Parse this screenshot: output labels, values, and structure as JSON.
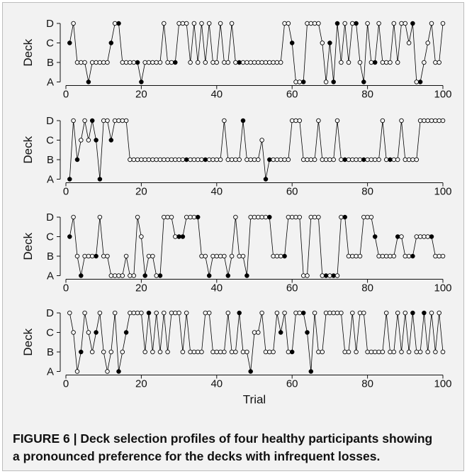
{
  "caption": {
    "lines": [
      "FIGURE 6 | Deck selection profiles of four healthy participants showing",
      "a pronounced preference for the decks with infrequent losses."
    ]
  },
  "style": {
    "background": "#f2f2f2",
    "border": "#bdbdbd",
    "ink": "#000000",
    "marker_open": "#ffffff",
    "marker_filled": "#000000"
  },
  "chart_data": [
    {
      "type": "line",
      "ylabel": "Deck",
      "xlim": [
        0,
        100
      ],
      "x_ticks": [
        0,
        20,
        40,
        60,
        80,
        100
      ],
      "y_categories": [
        "A",
        "B",
        "C",
        "D"
      ],
      "grid": false,
      "series": [
        {
          "x": [
            1,
            2,
            3,
            4,
            5,
            6,
            7,
            8,
            9,
            10,
            11,
            12,
            13,
            14,
            15,
            16,
            17,
            18,
            19,
            20,
            21,
            22,
            23,
            24,
            25,
            26,
            27,
            28,
            29,
            30,
            31,
            32,
            33,
            34,
            35,
            36,
            37,
            38,
            39,
            40,
            41,
            42,
            43,
            44,
            45,
            46,
            47,
            48,
            49,
            50,
            51,
            52,
            53,
            54,
            55,
            56,
            57,
            58,
            59,
            60,
            61,
            62,
            63,
            64,
            65,
            66,
            67,
            68,
            69,
            70,
            71,
            72,
            73,
            74,
            75,
            76,
            77,
            78,
            79,
            80,
            81,
            82,
            83,
            84,
            85,
            86,
            87,
            88,
            89,
            90,
            91,
            92,
            93,
            94,
            95,
            96,
            97,
            98,
            99,
            100
          ],
          "y": [
            "C",
            "D",
            "B",
            "B",
            "B",
            "A",
            "B",
            "B",
            "B",
            "B",
            "B",
            "C",
            "D",
            "D",
            "B",
            "B",
            "B",
            "B",
            "B",
            "A",
            "B",
            "B",
            "B",
            "B",
            "B",
            "D",
            "B",
            "B",
            "B",
            "D",
            "D",
            "D",
            "B",
            "D",
            "B",
            "D",
            "B",
            "D",
            "B",
            "B",
            "D",
            "B",
            "B",
            "D",
            "B",
            "B",
            "B",
            "B",
            "B",
            "B",
            "B",
            "B",
            "B",
            "B",
            "B",
            "B",
            "B",
            "D",
            "D",
            "C",
            "A",
            "A",
            "A",
            "D",
            "D",
            "D",
            "D",
            "C",
            "A",
            "C",
            "A",
            "D",
            "B",
            "D",
            "B",
            "D",
            "D",
            "B",
            "A",
            "D",
            "B",
            "B",
            "D",
            "B",
            "B",
            "B",
            "D",
            "B",
            "D",
            "D",
            "C",
            "D",
            "A",
            "A",
            "B",
            "C",
            "D",
            "B",
            "B",
            "D"
          ],
          "filled": [
            1,
            6,
            12,
            14,
            19,
            20,
            29,
            46,
            60,
            63,
            70,
            71,
            72,
            77,
            79,
            82,
            92,
            94
          ]
        }
      ]
    },
    {
      "type": "line",
      "ylabel": "Deck",
      "xlim": [
        0,
        100
      ],
      "x_ticks": [
        0,
        20,
        40,
        60,
        80,
        100
      ],
      "y_categories": [
        "A",
        "B",
        "C",
        "D"
      ],
      "grid": false,
      "series": [
        {
          "x": [
            1,
            2,
            3,
            4,
            5,
            6,
            7,
            8,
            9,
            10,
            11,
            12,
            13,
            14,
            15,
            16,
            17,
            18,
            19,
            20,
            21,
            22,
            23,
            24,
            25,
            26,
            27,
            28,
            29,
            30,
            31,
            32,
            33,
            34,
            35,
            36,
            37,
            38,
            39,
            40,
            41,
            42,
            43,
            44,
            45,
            46,
            47,
            48,
            49,
            50,
            51,
            52,
            53,
            54,
            55,
            56,
            57,
            58,
            59,
            60,
            61,
            62,
            63,
            64,
            65,
            66,
            67,
            68,
            69,
            70,
            71,
            72,
            73,
            74,
            75,
            76,
            77,
            78,
            79,
            80,
            81,
            82,
            83,
            84,
            85,
            86,
            87,
            88,
            89,
            90,
            91,
            92,
            93,
            94,
            95,
            96,
            97,
            98,
            99,
            100
          ],
          "y": [
            "A",
            "D",
            "B",
            "C",
            "D",
            "C",
            "D",
            "C",
            "A",
            "D",
            "D",
            "C",
            "D",
            "D",
            "D",
            "D",
            "B",
            "B",
            "B",
            "B",
            "B",
            "B",
            "B",
            "B",
            "B",
            "B",
            "B",
            "B",
            "B",
            "B",
            "B",
            "B",
            "B",
            "B",
            "B",
            "B",
            "B",
            "B",
            "B",
            "B",
            "B",
            "D",
            "B",
            "B",
            "B",
            "B",
            "D",
            "B",
            "B",
            "B",
            "B",
            "C",
            "A",
            "B",
            "B",
            "B",
            "B",
            "B",
            "B",
            "D",
            "D",
            "D",
            "B",
            "B",
            "B",
            "B",
            "D",
            "B",
            "B",
            "B",
            "B",
            "D",
            "B",
            "B",
            "B",
            "B",
            "B",
            "B",
            "B",
            "B",
            "B",
            "B",
            "B",
            "D",
            "B",
            "B",
            "B",
            "B",
            "D",
            "B",
            "B",
            "B",
            "B",
            "D",
            "D",
            "D",
            "D",
            "D",
            "D",
            "D"
          ],
          "filled": [
            1,
            3,
            7,
            8,
            9,
            12,
            32,
            37,
            47,
            53,
            54,
            74,
            79,
            86
          ]
        }
      ]
    },
    {
      "type": "line",
      "ylabel": "Deck",
      "xlim": [
        0,
        100
      ],
      "x_ticks": [
        0,
        20,
        40,
        60,
        80,
        100
      ],
      "y_categories": [
        "A",
        "B",
        "C",
        "D"
      ],
      "grid": false,
      "series": [
        {
          "x": [
            1,
            2,
            3,
            4,
            5,
            6,
            7,
            8,
            9,
            10,
            11,
            12,
            13,
            14,
            15,
            16,
            17,
            18,
            19,
            20,
            21,
            22,
            23,
            24,
            25,
            26,
            27,
            28,
            29,
            30,
            31,
            32,
            33,
            34,
            35,
            36,
            37,
            38,
            39,
            40,
            41,
            42,
            43,
            44,
            45,
            46,
            47,
            48,
            49,
            50,
            51,
            52,
            53,
            54,
            55,
            56,
            57,
            58,
            59,
            60,
            61,
            62,
            63,
            64,
            65,
            66,
            67,
            68,
            69,
            70,
            71,
            72,
            73,
            74,
            75,
            76,
            77,
            78,
            79,
            80,
            81,
            82,
            83,
            84,
            85,
            86,
            87,
            88,
            89,
            90,
            91,
            92,
            93,
            94,
            95,
            96,
            97,
            98,
            99,
            100
          ],
          "y": [
            "C",
            "D",
            "B",
            "A",
            "B",
            "B",
            "B",
            "B",
            "D",
            "B",
            "B",
            "A",
            "A",
            "A",
            "A",
            "B",
            "A",
            "A",
            "D",
            "C",
            "A",
            "B",
            "B",
            "A",
            "A",
            "D",
            "D",
            "D",
            "C",
            "C",
            "C",
            "D",
            "D",
            "D",
            "D",
            "B",
            "B",
            "A",
            "B",
            "B",
            "B",
            "B",
            "A",
            "B",
            "D",
            "B",
            "B",
            "A",
            "D",
            "D",
            "D",
            "D",
            "D",
            "D",
            "B",
            "B",
            "B",
            "B",
            "D",
            "D",
            "D",
            "D",
            "A",
            "A",
            "D",
            "D",
            "D",
            "A",
            "A",
            "A",
            "A",
            "A",
            "D",
            "D",
            "B",
            "B",
            "B",
            "B",
            "D",
            "D",
            "D",
            "C",
            "B",
            "B",
            "B",
            "B",
            "B",
            "C",
            "C",
            "B",
            "B",
            "B",
            "C",
            "C",
            "C",
            "C",
            "C",
            "B",
            "B",
            "B"
          ],
          "filled": [
            1,
            4,
            8,
            21,
            25,
            30,
            31,
            35,
            38,
            43,
            48,
            54,
            58,
            69,
            71,
            74,
            82,
            88,
            92,
            97
          ]
        }
      ]
    },
    {
      "type": "line",
      "ylabel": "Deck",
      "xlabel": "Trial",
      "xlim": [
        0,
        100
      ],
      "x_ticks": [
        0,
        20,
        40,
        60,
        80,
        100
      ],
      "y_categories": [
        "A",
        "B",
        "C",
        "D"
      ],
      "grid": false,
      "series": [
        {
          "x": [
            1,
            2,
            3,
            4,
            5,
            6,
            7,
            8,
            9,
            10,
            11,
            12,
            13,
            14,
            15,
            16,
            17,
            18,
            19,
            20,
            21,
            22,
            23,
            24,
            25,
            26,
            27,
            28,
            29,
            30,
            31,
            32,
            33,
            34,
            35,
            36,
            37,
            38,
            39,
            40,
            41,
            42,
            43,
            44,
            45,
            46,
            47,
            48,
            49,
            50,
            51,
            52,
            53,
            54,
            55,
            56,
            57,
            58,
            59,
            60,
            61,
            62,
            63,
            64,
            65,
            66,
            67,
            68,
            69,
            70,
            71,
            72,
            73,
            74,
            75,
            76,
            77,
            78,
            79,
            80,
            81,
            82,
            83,
            84,
            85,
            86,
            87,
            88,
            89,
            90,
            91,
            92,
            93,
            94,
            95,
            96,
            97,
            98,
            99,
            100
          ],
          "y": [
            "D",
            "C",
            "A",
            "B",
            "D",
            "C",
            "B",
            "C",
            "D",
            "B",
            "A",
            "B",
            "D",
            "A",
            "B",
            "C",
            "D",
            "D",
            "D",
            "D",
            "B",
            "D",
            "B",
            "D",
            "B",
            "D",
            "B",
            "D",
            "D",
            "D",
            "B",
            "D",
            "B",
            "B",
            "B",
            "B",
            "D",
            "D",
            "B",
            "B",
            "B",
            "B",
            "D",
            "B",
            "B",
            "D",
            "B",
            "B",
            "A",
            "C",
            "C",
            "D",
            "B",
            "B",
            "B",
            "D",
            "C",
            "D",
            "B",
            "B",
            "D",
            "D",
            "D",
            "C",
            "A",
            "D",
            "B",
            "B",
            "D",
            "D",
            "D",
            "D",
            "D",
            "B",
            "B",
            "D",
            "B",
            "D",
            "D",
            "B",
            "B",
            "B",
            "B",
            "B",
            "D",
            "B",
            "B",
            "D",
            "B",
            "D",
            "B",
            "D",
            "B",
            "B",
            "D",
            "B",
            "D",
            "B",
            "D",
            "B"
          ],
          "filled": [
            4,
            8,
            14,
            16,
            22,
            46,
            49,
            57,
            60,
            63,
            64,
            65,
            92,
            95
          ]
        }
      ]
    }
  ]
}
